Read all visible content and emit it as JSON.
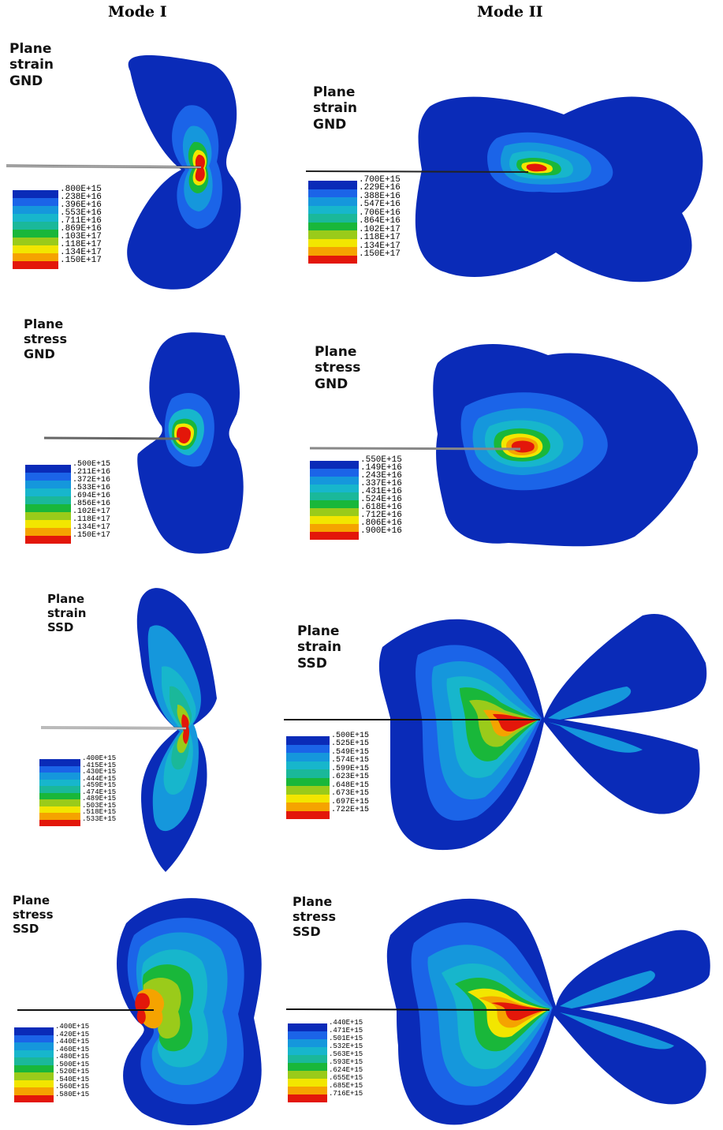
{
  "columns": [
    "Mode I",
    "Mode II"
  ],
  "colors": [
    "#0a2bb8",
    "#1b64e8",
    "#1597dc",
    "#17b6cc",
    "#1ab89a",
    "#19b73a",
    "#9acb1a",
    "#f2e600",
    "#f5a300",
    "#e3170a"
  ],
  "panels": [
    {
      "id": "p1",
      "label": [
        "Plane",
        "strain",
        "GND"
      ],
      "legend": [
        ".800E+15",
        ".238E+16",
        ".396E+16",
        ".553E+16",
        ".711E+16",
        ".869E+16",
        ".103E+17",
        ".118E+17",
        ".134E+17",
        ".150E+17"
      ]
    },
    {
      "id": "p2",
      "label": [
        "Plane",
        "strain",
        "GND"
      ],
      "legend": [
        ".700E+15",
        ".229E+16",
        ".388E+16",
        ".547E+16",
        ".706E+16",
        ".864E+16",
        ".102E+17",
        ".118E+17",
        ".134E+17",
        ".150E+17"
      ]
    },
    {
      "id": "p3",
      "label": [
        "Plane",
        "stress",
        "GND"
      ],
      "legend": [
        ".500E+15",
        ".211E+16",
        ".372E+16",
        ".533E+16",
        ".694E+16",
        ".856E+16",
        ".102E+17",
        ".118E+17",
        ".134E+17",
        ".150E+17"
      ]
    },
    {
      "id": "p4",
      "label": [
        "Plane",
        "stress",
        "GND"
      ],
      "legend": [
        ".550E+15",
        ".149E+16",
        ".243E+16",
        ".337E+16",
        ".431E+16",
        ".524E+16",
        ".618E+16",
        ".712E+16",
        ".806E+16",
        ".900E+16"
      ]
    },
    {
      "id": "p5",
      "label": [
        "Plane",
        "strain",
        "SSD"
      ],
      "legend": [
        ".400E+15",
        ".415E+15",
        ".430E+15",
        ".444E+15",
        ".459E+15",
        ".474E+15",
        ".489E+15",
        ".503E+15",
        ".518E+15",
        ".533E+15"
      ]
    },
    {
      "id": "p6",
      "label": [
        "Plane",
        "strain",
        "SSD"
      ],
      "legend": [
        ".500E+15",
        ".525E+15",
        ".549E+15",
        ".574E+15",
        ".599E+15",
        ".623E+15",
        ".648E+15",
        ".673E+15",
        ".697E+15",
        ".722E+15"
      ]
    },
    {
      "id": "p7",
      "label": [
        "Plane",
        "stress",
        "SSD"
      ],
      "legend": [
        ".400E+15",
        ".420E+15",
        ".440E+15",
        ".460E+15",
        ".480E+15",
        ".500E+15",
        ".520E+15",
        ".540E+15",
        ".560E+15",
        ".580E+15"
      ]
    },
    {
      "id": "p8",
      "label": [
        "Plane",
        "stress",
        "SSD"
      ],
      "legend": [
        ".440E+15",
        ".471E+15",
        ".501E+15",
        ".532E+15",
        ".563E+15",
        ".593E+15",
        ".624E+15",
        ".655E+15",
        ".685E+15",
        ".716E+15"
      ]
    }
  ]
}
